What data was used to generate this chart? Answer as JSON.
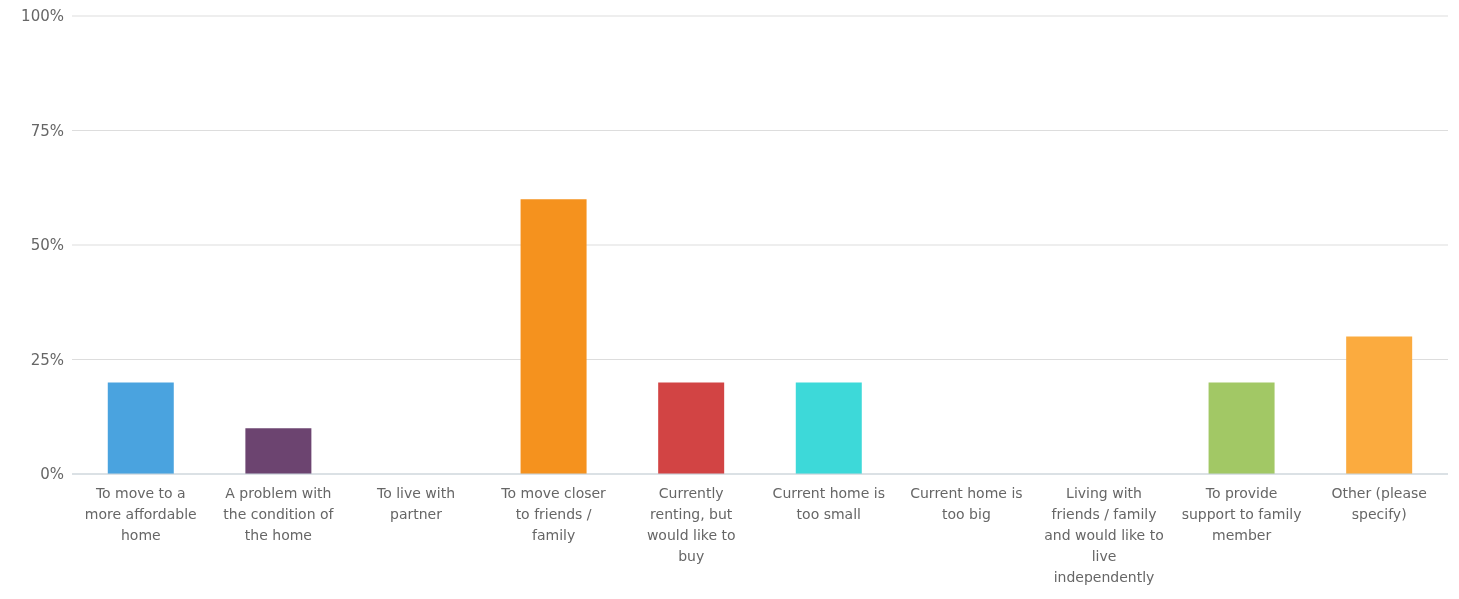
{
  "chart_data": {
    "type": "bar",
    "categories": [
      "To move to a more affordable home",
      "A problem with the condition of the home",
      "To live with partner",
      "To move closer to friends / family",
      "Currently renting, but would like to buy",
      "Current home is too small",
      "Current home is too big",
      "Living with friends / family and would like to live independently",
      "To provide support to family member",
      "Other (please specify)"
    ],
    "values": [
      20,
      10,
      0,
      60,
      20,
      20,
      0,
      0,
      20,
      30
    ],
    "colors": [
      "#4aa3df",
      "#6c4470",
      "#888888",
      "#f5921e",
      "#d24444",
      "#3dd9d9",
      "#888888",
      "#888888",
      "#a2c865",
      "#fbab3f"
    ],
    "ylim": [
      0,
      100
    ],
    "yticks": [
      {
        "value": 0,
        "label": "0%"
      },
      {
        "value": 25,
        "label": "25%"
      },
      {
        "value": 50,
        "label": "50%"
      },
      {
        "value": 75,
        "label": "75%"
      },
      {
        "value": 100,
        "label": "100%"
      }
    ],
    "grid": "y"
  }
}
